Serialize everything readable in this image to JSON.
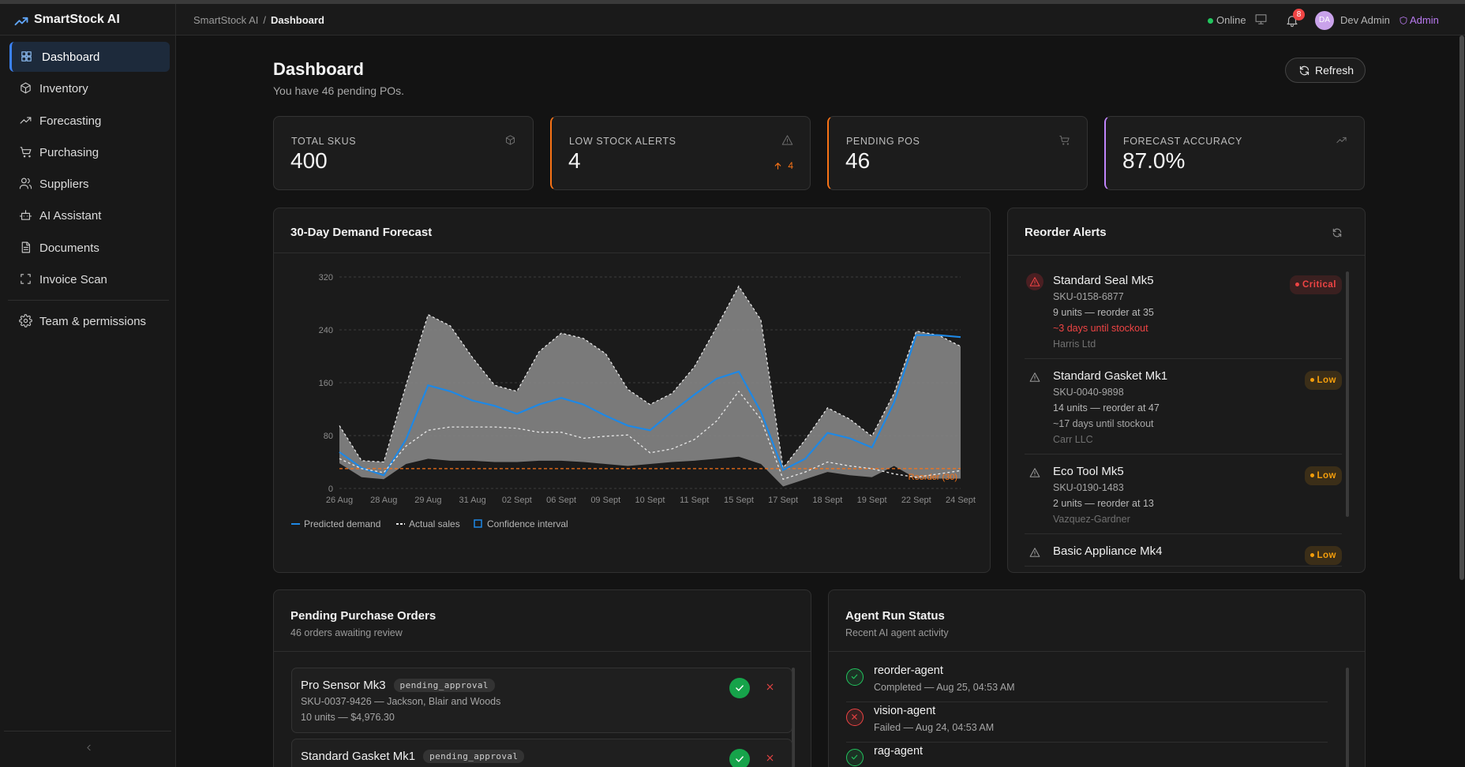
{
  "app": {
    "name": "SmartStock AI"
  },
  "breadcrumb": {
    "items": [
      "SmartStock AI",
      "Dashboard"
    ],
    "separator": "/"
  },
  "topbar": {
    "status": "Online",
    "notifications": 8,
    "avatar": "DA",
    "user": "Dev Admin",
    "role": "Admin"
  },
  "nav": {
    "items": [
      "Dashboard",
      "Inventory",
      "Forecasting",
      "Purchasing",
      "Suppliers",
      "AI Assistant",
      "Documents",
      "Invoice Scan",
      "Team & permissions"
    ],
    "active": 0
  },
  "header": {
    "title": "Dashboard",
    "subtitle": "You have 46 pending POs.",
    "button": "Refresh"
  },
  "stats": [
    {
      "label": "TOTAL SKUS",
      "value": "400"
    },
    {
      "label": "LOW STOCK ALERTS",
      "value": "4",
      "delta": 4,
      "accent": "#f97316"
    },
    {
      "label": "PENDING POS",
      "value": "46",
      "accent": "#f97316"
    },
    {
      "label": "FORECAST ACCURACY",
      "value": "87.0%",
      "accent": "#c084fc"
    }
  ],
  "chart_data": {
    "type": "line",
    "title": "30-Day Demand Forecast",
    "categories": [
      "26 Aug",
      null,
      "28 Aug",
      null,
      "29 Aug",
      null,
      "31 Aug",
      null,
      "02 Sept",
      null,
      "06 Sept",
      null,
      "09 Sept",
      null,
      "10 Sept",
      null,
      "11 Sept",
      null,
      "15 Sept",
      null,
      "17 Sept",
      null,
      "18 Sept",
      null,
      "19 Sept",
      null,
      "22 Sept",
      null,
      "24 Sept"
    ],
    "series": [
      {
        "name": "Predicted demand",
        "color": "#1e88e5",
        "values": [
          55,
          31,
          20,
          74,
          156,
          147,
          133,
          125,
          113,
          127,
          137,
          127,
          110,
          95,
          88,
          116,
          142,
          166,
          177,
          116,
          28,
          45,
          84,
          76,
          62,
          130,
          232,
          232,
          229
        ]
      },
      {
        "name": "Actual sales",
        "color": "#e8e8e8",
        "dashed": true,
        "values": [
          45,
          30,
          24,
          64,
          88,
          93,
          93,
          93,
          91,
          85,
          85,
          76,
          79,
          81,
          54,
          60,
          74,
          102,
          147,
          105,
          14,
          25,
          40,
          34,
          30,
          22,
          17,
          22,
          27
        ]
      }
    ],
    "band": {
      "name": "Confidence interval",
      "color": "#1e88e5",
      "fill": "#858585",
      "upper": [
        95,
        42,
        40,
        156,
        263,
        246,
        198,
        156,
        147,
        207,
        235,
        227,
        204,
        150,
        127,
        144,
        184,
        244,
        306,
        255,
        31,
        74,
        122,
        105,
        79,
        144,
        238,
        232,
        215
      ],
      "lower": [
        38,
        17,
        14,
        37,
        45,
        42,
        42,
        40,
        40,
        42,
        42,
        40,
        37,
        34,
        37,
        40,
        42,
        45,
        48,
        37,
        3,
        14,
        25,
        20,
        17,
        34,
        15,
        15,
        15
      ]
    },
    "reference": {
      "value": 30,
      "label": "Reorder (30)",
      "color": "#f97316"
    },
    "ylim": [
      0,
      320
    ],
    "yticks": [
      0,
      80,
      160,
      240,
      320
    ],
    "grid": true
  },
  "reorder_alerts": {
    "title": "Reorder Alerts",
    "items": [
      {
        "name": "Standard Seal Mk5",
        "sku": "SKU-0158-6877",
        "stock": "9 units — reorder at 35",
        "stockout": "~3 days until stockout",
        "supplier": "Harris Ltd",
        "level": "Critical",
        "color": "#ef4444",
        "stockout_color": "#ef4444"
      },
      {
        "name": "Standard Gasket Mk1",
        "sku": "SKU-0040-9898",
        "stock": "14 units — reorder at 47",
        "stockout": "~17 days until stockout",
        "supplier": "Carr LLC",
        "level": "Low",
        "color": "#f59e0b",
        "stockout_color": "#a8a8a8"
      },
      {
        "name": "Eco Tool Mk5",
        "sku": "SKU-0190-1483",
        "stock": "2 units — reorder at 13",
        "supplier": "Vazquez-Gardner",
        "level": "Low",
        "color": "#f59e0b"
      },
      {
        "name": "Basic Appliance Mk4",
        "level": "Low",
        "color": "#f59e0b"
      }
    ]
  },
  "purchase_orders": {
    "title": "Pending Purchase Orders",
    "subtitle": "46 orders awaiting review",
    "items": [
      {
        "name": "Pro Sensor Mk3",
        "status": "pending_approval",
        "detail": "SKU-0037-9426 — Jackson, Blair and Woods",
        "amount": "10 units — $4,976.30"
      },
      {
        "name": "Standard Gasket Mk1",
        "status": "pending_approval"
      }
    ]
  },
  "agents": {
    "title": "Agent Run Status",
    "subtitle": "Recent AI agent activity",
    "items": [
      {
        "name": "reorder-agent",
        "detail": "Completed — Aug 25, 04:53 AM",
        "color": "#22c55e"
      },
      {
        "name": "vision-agent",
        "detail": "Failed — Aug 24, 04:53 AM",
        "color": "#ef4444"
      },
      {
        "name": "rag-agent",
        "color": "#22c55e"
      }
    ]
  }
}
